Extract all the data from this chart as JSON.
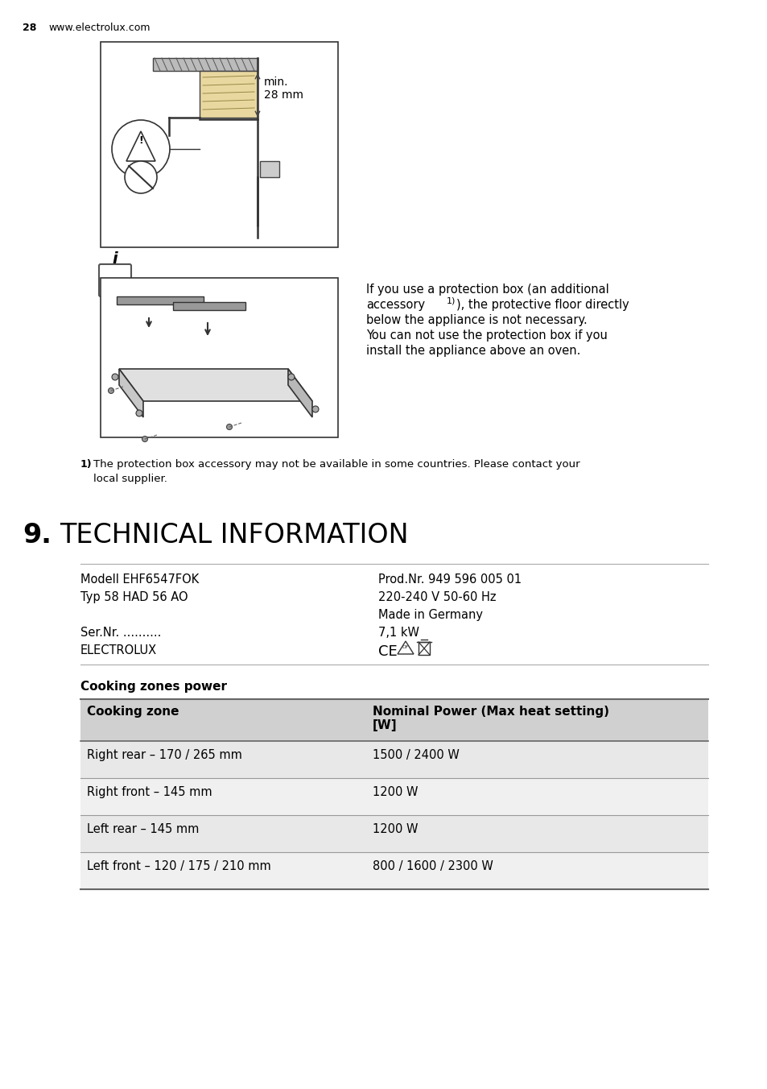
{
  "page_number": "28",
  "website": "www.electrolux.com",
  "section_number": "9.",
  "section_title": "TECHNICAL INFORMATION",
  "info_line1": "If you use a protection box (an additional",
  "info_line2a": "accessory",
  "info_line2b": "), the protective floor directly",
  "info_line3": "below the appliance is not necessary.",
  "info_line4": "You can not use the protection box if you",
  "info_line5": "install the appliance above an oven.",
  "footnote_sup": "1)",
  "footnote_text": "The protection box accessory may not be available in some countries. Please contact your",
  "footnote_text2": "local supplier.",
  "tech_rows": [
    [
      "Modell EHF6547FOK",
      "Prod.Nr. 949 596 005 01"
    ],
    [
      "Typ 58 HAD 56 AO",
      "220-240 V 50-60 Hz"
    ],
    [
      "",
      "Made in Germany"
    ],
    [
      "Ser.Nr. ..........",
      "7,1 kW"
    ],
    [
      "ELECTROLUX",
      ""
    ]
  ],
  "cooking_zones_header": "Cooking zones power",
  "table_col1_header": "Cooking zone",
  "table_col2_header": "Nominal Power (Max heat setting)\n[W]",
  "table_rows": [
    [
      "Right rear – 170 / 265 mm",
      "1500 / 2400 W"
    ],
    [
      "Right front – 145 mm",
      "1200 W"
    ],
    [
      "Left rear – 145 mm",
      "1200 W"
    ],
    [
      "Left front – 120 / 175 / 210 mm",
      "800 / 1600 / 2300 W"
    ]
  ],
  "table_header_bg": "#d0d0d0",
  "table_row_bg_even": "#e8e8e8",
  "table_row_bg_odd": "#f0f0f0",
  "bg_color": "#ffffff"
}
